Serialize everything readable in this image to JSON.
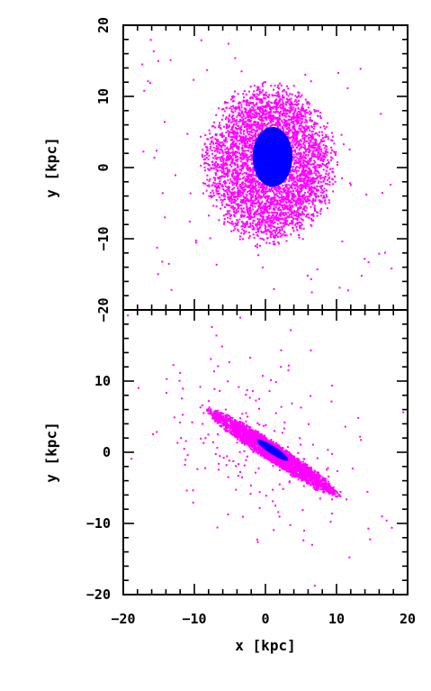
{
  "chart_data": [
    {
      "type": "scatter",
      "panel": "top",
      "title": "",
      "xlabel": "",
      "ylabel": "y [kpc]",
      "xlim": [
        -20,
        20
      ],
      "ylim": [
        -20,
        20
      ],
      "xticks": [
        -20,
        -10,
        0,
        10,
        20
      ],
      "yticks": [
        -20,
        -10,
        0,
        10,
        20
      ],
      "ytick_labels": [
        "−20",
        "−10",
        "0",
        "10",
        "20"
      ],
      "xtick_labels": [],
      "grid": false,
      "series": [
        {
          "color": "#ff00ff",
          "shape": "ellipse",
          "center": [
            0.5,
            0.5
          ],
          "semi_axes": [
            9,
            11
          ],
          "rotation_deg": 0,
          "core_points": 4200,
          "halo_points": 90,
          "halo_extent": 20
        },
        {
          "color": "#0000ff",
          "shape": "ellipse",
          "center": [
            1.0,
            1.5
          ],
          "semi_axes": [
            2.8,
            4.2
          ],
          "rotation_deg": 0,
          "core_points": 0,
          "halo_points": 0,
          "solid": true
        }
      ]
    },
    {
      "type": "scatter",
      "panel": "bottom",
      "title": "",
      "xlabel": "x [kpc]",
      "ylabel": "y [kpc]",
      "xlim": [
        -20,
        20
      ],
      "ylim": [
        -20,
        20
      ],
      "xticks": [
        -20,
        -10,
        0,
        10,
        20
      ],
      "yticks": [
        -20,
        -10,
        0,
        10,
        20
      ],
      "xtick_labels": [
        "−20",
        "−10",
        "0",
        "10",
        "20"
      ],
      "ytick_labels": [
        "−20",
        "−10",
        "0",
        "10",
        ""
      ],
      "grid": false,
      "series": [
        {
          "color": "#ff00ff",
          "shape": "ellipse",
          "center": [
            1.0,
            0.0
          ],
          "semi_axes": [
            11,
            1.3
          ],
          "rotation_deg": -33,
          "core_points": 2600,
          "halo_points": 220,
          "halo_extent": 20
        },
        {
          "color": "#0000ff",
          "shape": "ellipse",
          "center": [
            1.0,
            0.3
          ],
          "semi_axes": [
            2.6,
            0.55
          ],
          "rotation_deg": -33,
          "core_points": 0,
          "halo_points": 0,
          "solid": true
        }
      ]
    }
  ],
  "colors": {
    "background": "#ffffff",
    "axes": "#000000",
    "halo": "#ff00ff",
    "core": "#0000ff"
  }
}
